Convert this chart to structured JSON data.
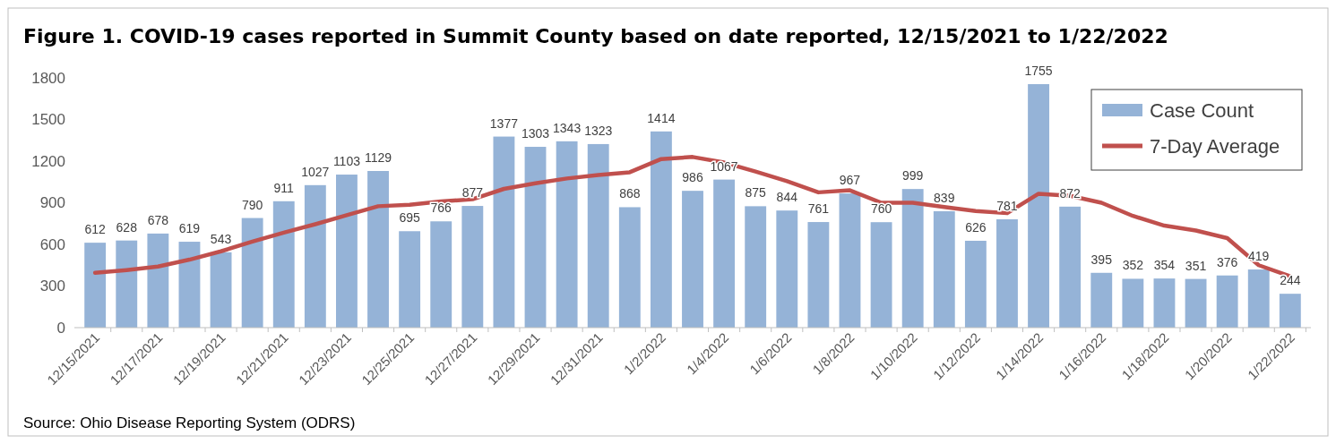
{
  "chart_data": {
    "type": "bar",
    "title": "Figure 1.  COVID-19 cases reported in Summit County based on date reported, 12/15/2021 to 1/22/2022",
    "categories": [
      "12/15/2021",
      null,
      "12/17/2021",
      null,
      "12/19/2021",
      null,
      "12/21/2021",
      null,
      "12/23/2021",
      null,
      "12/25/2021",
      null,
      "12/27/2021",
      null,
      "12/29/2021",
      null,
      "12/31/2021",
      null,
      "1/2/2022",
      null,
      "1/4/2022",
      null,
      "1/6/2022",
      null,
      "1/8/2022",
      null,
      "1/10/2022",
      null,
      "1/12/2022",
      null,
      "1/14/2022",
      null,
      "1/16/2022",
      null,
      "1/18/2022",
      null,
      "1/20/2022",
      null,
      "1/22/2022"
    ],
    "series": [
      {
        "name": "Case Count",
        "color": "#95b3d7",
        "values": [
          612,
          628,
          678,
          619,
          543,
          790,
          911,
          1027,
          1103,
          1129,
          695,
          766,
          877,
          1377,
          1303,
          1343,
          1323,
          868,
          1414,
          986,
          1067,
          875,
          844,
          761,
          967,
          760,
          999,
          839,
          626,
          781,
          1755,
          872,
          395,
          352,
          354,
          351,
          376,
          419,
          244
        ],
        "value_labels": [
          "612",
          "628",
          "678",
          "619",
          "543",
          "790",
          "911",
          "1027",
          "1103",
          "1129",
          "695",
          "766",
          "877",
          "1377",
          "1303",
          "1343",
          "1323",
          "868",
          "1414",
          "986",
          "1067",
          "875",
          "844",
          "761",
          "967",
          "760",
          "999",
          "839",
          "626",
          "781",
          "1755",
          "872",
          "395",
          "352",
          "354",
          "351",
          "376",
          "419",
          "244"
        ]
      },
      {
        "name": "7-Day Average",
        "type": "line",
        "color": "#c0504d",
        "values": [
          395,
          415,
          440,
          490,
          550,
          620,
          685,
          745,
          810,
          875,
          885,
          910,
          925,
          1000,
          1040,
          1075,
          1100,
          1120,
          1215,
          1230,
          1190,
          1125,
          1055,
          975,
          990,
          900,
          900,
          870,
          840,
          825,
          965,
          950,
          900,
          805,
          735,
          700,
          645,
          450,
          370
        ]
      }
    ],
    "ylim": [
      0,
      1800
    ],
    "yticks": [
      0,
      300,
      600,
      900,
      1200,
      1500,
      1800
    ],
    "grid": false,
    "legend": "top right",
    "marker": "none",
    "line_style": "solid",
    "annotations": [
      "Source:  Ohio Disease Reporting System (ODRS)"
    ]
  }
}
